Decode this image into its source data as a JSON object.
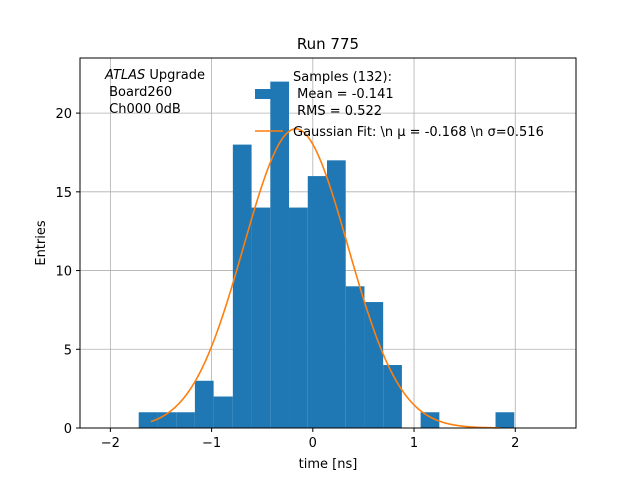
{
  "chart_data": {
    "type": "histogram",
    "title": "Run 775",
    "xlabel": "time [ns]",
    "ylabel": "Entries",
    "xlim": [
      -2.3,
      2.6
    ],
    "ylim": [
      0,
      23.5
    ],
    "xticks": [
      -2,
      -1,
      0,
      1,
      2
    ],
    "yticks": [
      0,
      5,
      10,
      15,
      20
    ],
    "grid": true,
    "bins": [
      {
        "x0": -1.72,
        "x1": -1.535,
        "count": 1
      },
      {
        "x0": -1.535,
        "x1": -1.35,
        "count": 1
      },
      {
        "x0": -1.35,
        "x1": -1.165,
        "count": 1
      },
      {
        "x0": -1.165,
        "x1": -0.98,
        "count": 3
      },
      {
        "x0": -0.98,
        "x1": -0.79,
        "count": 2
      },
      {
        "x0": -0.79,
        "x1": -0.605,
        "count": 18
      },
      {
        "x0": -0.605,
        "x1": -0.42,
        "count": 14
      },
      {
        "x0": -0.42,
        "x1": -0.235,
        "count": 22
      },
      {
        "x0": -0.235,
        "x1": -0.05,
        "count": 14
      },
      {
        "x0": -0.05,
        "x1": 0.14,
        "count": 16
      },
      {
        "x0": 0.14,
        "x1": 0.325,
        "count": 17
      },
      {
        "x0": 0.325,
        "x1": 0.51,
        "count": 9
      },
      {
        "x0": 0.51,
        "x1": 0.695,
        "count": 8
      },
      {
        "x0": 0.695,
        "x1": 0.88,
        "count": 4
      },
      {
        "x0": 0.88,
        "x1": 1.065,
        "count": 0
      },
      {
        "x0": 1.065,
        "x1": 1.25,
        "count": 1
      },
      {
        "x0": 1.25,
        "x1": 1.435,
        "count": 0
      },
      {
        "x0": 1.435,
        "x1": 1.62,
        "count": 0
      },
      {
        "x0": 1.62,
        "x1": 1.805,
        "count": 0
      },
      {
        "x0": 1.805,
        "x1": 1.99,
        "count": 1
      }
    ],
    "bar_color": "#1f77b4",
    "fit": {
      "type": "gaussian",
      "mu": -0.168,
      "sigma": 0.516,
      "amplitude": 19.0,
      "x_range": [
        -1.6,
        1.85
      ],
      "color": "#ff7f0e"
    },
    "legend": {
      "placement": "top-right",
      "entries": [
        {
          "lines": [
            "Samples (132):",
            " Mean = -0.141",
            " RMS = 0.522"
          ],
          "color": "#1f77b4",
          "kind": "patch"
        },
        {
          "lines": [
            "Gaussian Fit: \\n μ = -0.168 \\n σ=0.516"
          ],
          "color": "#ff7f0e",
          "kind": "line"
        }
      ]
    },
    "annotation": {
      "italic": "ATLAS",
      "rest": " Upgrade",
      "line2": " Board260",
      "line3": " Ch000 0dB"
    }
  }
}
